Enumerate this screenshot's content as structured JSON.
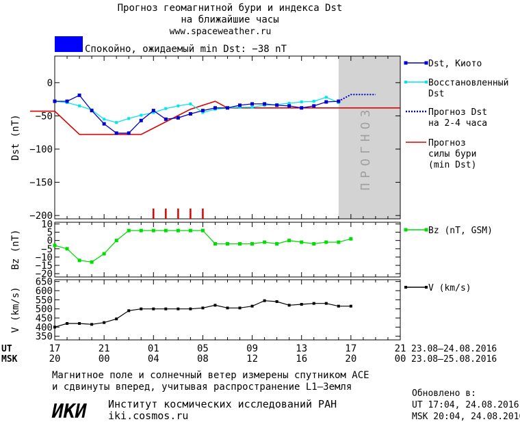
{
  "header": {
    "title_line1": "Прогноз геомагнитной бури и индекса Dst",
    "title_line2": "на ближайшие часы",
    "url": "www.spaceweather.ru",
    "status_color": "#0000ff",
    "status_text": "Спокойно, ожидаемый min Dst: −38 nT"
  },
  "colors": {
    "dst_kyoto": "#0000cc",
    "restored": "#00e5ee",
    "forecast_dst": "#0000cc",
    "storm_forecast": "#dd0000",
    "bz": "#00dd00",
    "speed": "#000000",
    "forecast_band": "#d3d3d3"
  },
  "forecast_label": "ПРОГНОЗ",
  "x_axis": {
    "ut_label": "UT",
    "msk_label": "MSK",
    "ticks_ut": [
      "17",
      "21",
      "01",
      "05",
      "09",
      "13",
      "17",
      "21"
    ],
    "ticks_msk": [
      "20",
      "00",
      "04",
      "08",
      "12",
      "16",
      "20",
      "00"
    ],
    "range_ut": "23.08–24.08.2016",
    "range_msk": "23.08–25.08.2016"
  },
  "footer": {
    "note_line1": "Магнитное поле и солнечный ветер измерены спутником ACE",
    "note_line2": "и сдвинуты вперед, учитывая распространение L1–Земля",
    "logo_text": "ИКИ",
    "institute": "Институт космических исследований РАН",
    "site": "iki.cosmos.ru",
    "updated_label": "Обновлено в:",
    "updated_ut": "UT  17:04, 24.08.2016",
    "updated_msk": "MSK 20:04, 24.08.2016"
  },
  "chart_data": [
    {
      "type": "line",
      "ylabel": "Dst (nT)",
      "ylim": [
        -205,
        40
      ],
      "yticks": [
        0,
        -50,
        -100,
        -150,
        -200
      ],
      "xlim": [
        0,
        28
      ],
      "forecast_region": [
        23,
        28
      ],
      "series": [
        {
          "name": "Dst, Киото",
          "x": [
            0,
            1,
            2,
            3,
            4,
            5,
            6,
            7,
            8,
            9,
            10,
            11,
            12,
            13,
            14,
            15,
            16,
            17,
            18,
            19,
            20,
            21,
            22,
            23
          ],
          "y": [
            -28,
            -28,
            -19,
            -42,
            -62,
            -76,
            -76,
            -57,
            -42,
            -55,
            -53,
            -47,
            -42,
            -38,
            -38,
            -34,
            -32,
            -32,
            -34,
            -35,
            -38,
            -35,
            -29,
            -28
          ]
        },
        {
          "name": "Восстановленный Dst",
          "x": [
            0,
            1,
            2,
            3,
            4,
            5,
            6,
            7,
            8,
            9,
            10,
            11,
            12,
            13,
            14,
            15,
            16,
            17,
            18,
            19,
            20,
            21,
            22,
            23
          ],
          "y": [
            -28,
            -30,
            -35,
            -41,
            -55,
            -60,
            -54,
            -49,
            -45,
            -39,
            -35,
            -32,
            -45,
            -40,
            -38,
            -37,
            -37,
            -34,
            -33,
            -31,
            -29,
            -28,
            -22,
            -30
          ]
        },
        {
          "name": "Прогноз Dst на 2-4 часа",
          "x": [
            23,
            23.6,
            24,
            25,
            26
          ],
          "y": [
            -28,
            -22,
            -18,
            -18,
            -18
          ]
        },
        {
          "name": "Прогноз силы бури (min Dst)",
          "x": [
            -2,
            0,
            2,
            7,
            11,
            13,
            14,
            28
          ],
          "y": [
            -43,
            -43,
            -78,
            -78,
            -40,
            -28,
            -38,
            -38
          ]
        }
      ],
      "storm_ticks_x": [
        8,
        9,
        10,
        11,
        12
      ]
    },
    {
      "type": "line",
      "ylabel": "Bz (nT)",
      "ylim": [
        -22,
        11
      ],
      "yticks": [
        10,
        5,
        0,
        -5,
        -10,
        -15,
        -20
      ],
      "ytick_labels": [
        "10",
        "5",
        "0",
        "−5",
        "−10",
        "−15",
        "−20"
      ],
      "xlim": [
        0,
        28
      ],
      "series": [
        {
          "name": "Bz (nT, GSM)",
          "x": [
            0,
            1,
            2,
            3,
            4,
            5,
            6,
            7,
            8,
            9,
            10,
            11,
            12,
            13,
            14,
            15,
            16,
            17,
            18,
            19,
            20,
            21,
            22,
            23,
            24
          ],
          "y": [
            -3,
            -5,
            -12,
            -13,
            -8,
            0,
            6,
            6,
            6,
            6,
            6,
            6,
            6,
            -2,
            -2,
            -2,
            -2,
            -1,
            -2,
            0,
            -1,
            -2,
            -1,
            -1,
            1
          ]
        }
      ]
    },
    {
      "type": "line",
      "ylabel": "V (km/s)",
      "ylim": [
        330,
        660
      ],
      "yticks": [
        650,
        600,
        550,
        500,
        450,
        400,
        350
      ],
      "xlim": [
        0,
        28
      ],
      "series": [
        {
          "name": "V (km/s)",
          "x": [
            0,
            1,
            2,
            3,
            4,
            5,
            6,
            7,
            8,
            9,
            10,
            11,
            12,
            13,
            14,
            15,
            16,
            17,
            18,
            19,
            20,
            21,
            22,
            23,
            24
          ],
          "y": [
            400,
            420,
            420,
            415,
            425,
            445,
            490,
            500,
            500,
            500,
            500,
            500,
            505,
            520,
            505,
            505,
            515,
            545,
            540,
            520,
            525,
            530,
            530,
            515,
            515
          ]
        }
      ]
    }
  ]
}
